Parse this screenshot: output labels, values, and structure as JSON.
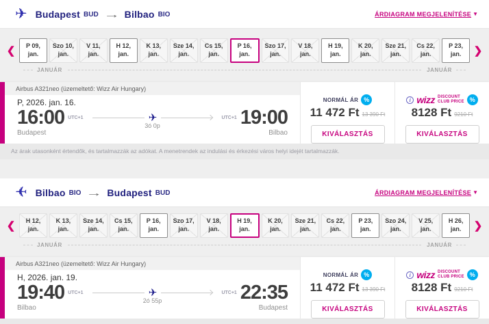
{
  "month_label": "JANUÁR",
  "chart_link": "ÁRDIAGRAM MEGJELENÍTÉSE",
  "select_label": "KIVÁLASZTÁS",
  "normal_label": "NORMÁL ÁR",
  "club_brand": "wizz",
  "club_line1": "DISCOUNT",
  "club_line2": "CLUB PRICE",
  "disclaimer": "Az árak utasonként értendők, és tartalmazzák az adókat. A menetrendek az indulási és érkezési város helyi idejét tartalmazzák.",
  "sections": [
    {
      "origin": "Budapest",
      "origin_code": "BUD",
      "destination": "Bilbao",
      "destination_code": "BIO",
      "dates": [
        {
          "day": "P 09,",
          "month": "jan.",
          "state": "available"
        },
        {
          "day": "Szo 10,",
          "month": "jan.",
          "state": "unavailable"
        },
        {
          "day": "V 11,",
          "month": "jan.",
          "state": "unavailable"
        },
        {
          "day": "H 12,",
          "month": "jan.",
          "state": "available"
        },
        {
          "day": "K 13,",
          "month": "jan.",
          "state": "unavailable"
        },
        {
          "day": "Sze 14,",
          "month": "jan.",
          "state": "unavailable"
        },
        {
          "day": "Cs 15,",
          "month": "jan.",
          "state": "unavailable"
        },
        {
          "day": "P 16,",
          "month": "jan.",
          "state": "selected"
        },
        {
          "day": "Szo 17,",
          "month": "jan.",
          "state": "unavailable"
        },
        {
          "day": "V 18,",
          "month": "jan.",
          "state": "unavailable"
        },
        {
          "day": "H 19,",
          "month": "jan.",
          "state": "available"
        },
        {
          "day": "K 20,",
          "month": "jan.",
          "state": "unavailable"
        },
        {
          "day": "Sze 21,",
          "month": "jan.",
          "state": "unavailable"
        },
        {
          "day": "Cs 22,",
          "month": "jan.",
          "state": "unavailable"
        },
        {
          "day": "P 23,",
          "month": "jan.",
          "state": "available"
        }
      ],
      "flight": {
        "aircraft": "Airbus A321neo (üzemeltető: Wizz Air Hungary)",
        "date": "P, 2026. jan. 16.",
        "dep_time": "16:00",
        "dep_tz": "UTC+1",
        "dep_city": "Budapest",
        "duration": "3ó 0p",
        "arr_time": "19:00",
        "arr_tz": "UTC+1",
        "arr_city": "Bilbao"
      },
      "prices": {
        "normal_price": "11 472 Ft",
        "normal_old_price": "13 390 Ft",
        "club_price": "8128 Ft",
        "club_old_price": "9210 Ft"
      }
    },
    {
      "origin": "Bilbao",
      "origin_code": "BIO",
      "destination": "Budapest",
      "destination_code": "BUD",
      "dates": [
        {
          "day": "H 12,",
          "month": "jan.",
          "state": "unavailable"
        },
        {
          "day": "K 13,",
          "month": "jan.",
          "state": "unavailable"
        },
        {
          "day": "Sze 14,",
          "month": "jan.",
          "state": "unavailable"
        },
        {
          "day": "Cs 15,",
          "month": "jan.",
          "state": "unavailable"
        },
        {
          "day": "P 16,",
          "month": "jan.",
          "state": "available"
        },
        {
          "day": "Szo 17,",
          "month": "jan.",
          "state": "unavailable"
        },
        {
          "day": "V 18,",
          "month": "jan.",
          "state": "unavailable"
        },
        {
          "day": "H 19,",
          "month": "jan.",
          "state": "selected"
        },
        {
          "day": "K 20,",
          "month": "jan.",
          "state": "unavailable"
        },
        {
          "day": "Sze 21,",
          "month": "jan.",
          "state": "unavailable"
        },
        {
          "day": "Cs 22,",
          "month": "jan.",
          "state": "unavailable"
        },
        {
          "day": "P 23,",
          "month": "jan.",
          "state": "available"
        },
        {
          "day": "Szo 24,",
          "month": "jan.",
          "state": "unavailable"
        },
        {
          "day": "V 25,",
          "month": "jan.",
          "state": "unavailable"
        },
        {
          "day": "H 26,",
          "month": "jan.",
          "state": "available"
        }
      ],
      "flight": {
        "aircraft": "Airbus A321neo (üzemeltető: Wizz Air Hungary)",
        "date": "H, 2026. jan. 19.",
        "dep_time": "19:40",
        "dep_tz": "UTC+1",
        "dep_city": "Bilbao",
        "duration": "2ó 55p",
        "arr_time": "22:35",
        "arr_tz": "UTC+1",
        "arr_city": "Budapest"
      },
      "prices": {
        "normal_price": "11 472 Ft",
        "normal_old_price": "13 390 Ft",
        "club_price": "8128 Ft",
        "club_old_price": "9210 Ft"
      }
    }
  ]
}
